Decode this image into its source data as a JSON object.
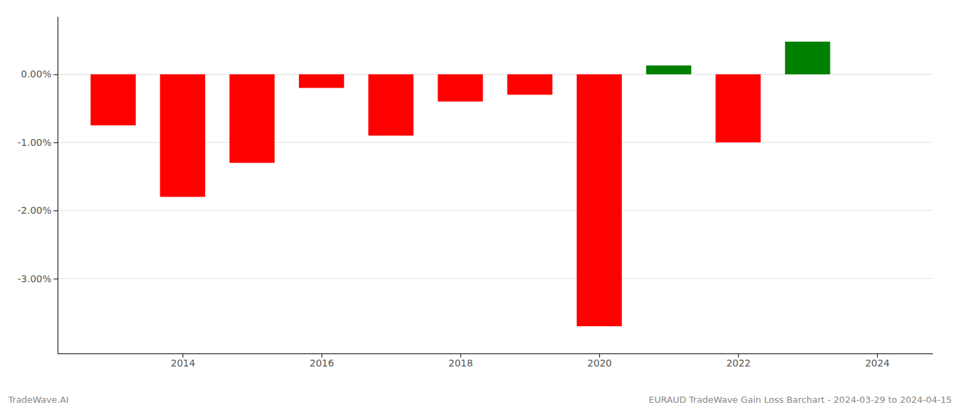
{
  "chart_data": {
    "type": "bar",
    "x": [
      2013,
      2014,
      2015,
      2016,
      2017,
      2018,
      2019,
      2020,
      2021,
      2022,
      2023
    ],
    "values": [
      -0.0075,
      -0.018,
      -0.013,
      -0.002,
      -0.009,
      -0.004,
      -0.003,
      -0.037,
      0.0013,
      -0.01,
      0.0048
    ],
    "colors": [
      "red",
      "red",
      "red",
      "red",
      "red",
      "red",
      "red",
      "red",
      "green",
      "red",
      "green"
    ],
    "xlim": [
      2012.2,
      2024.8
    ],
    "xticks": [
      2014,
      2016,
      2018,
      2020,
      2022,
      2024
    ],
    "ylim": [
      -0.041,
      0.0085
    ],
    "yticks": [
      {
        "value": 0.0,
        "label": "0.00%"
      },
      {
        "value": -0.01,
        "label": "-1.00%"
      },
      {
        "value": -0.02,
        "label": "-2.00%"
      },
      {
        "value": -0.03,
        "label": "-3.00%"
      }
    ],
    "grid": true,
    "annotations": [
      "TradeWave.AI",
      "EURAUD TradeWave Gain Loss Barchart - 2024-03-29 to 2024-04-15"
    ]
  }
}
